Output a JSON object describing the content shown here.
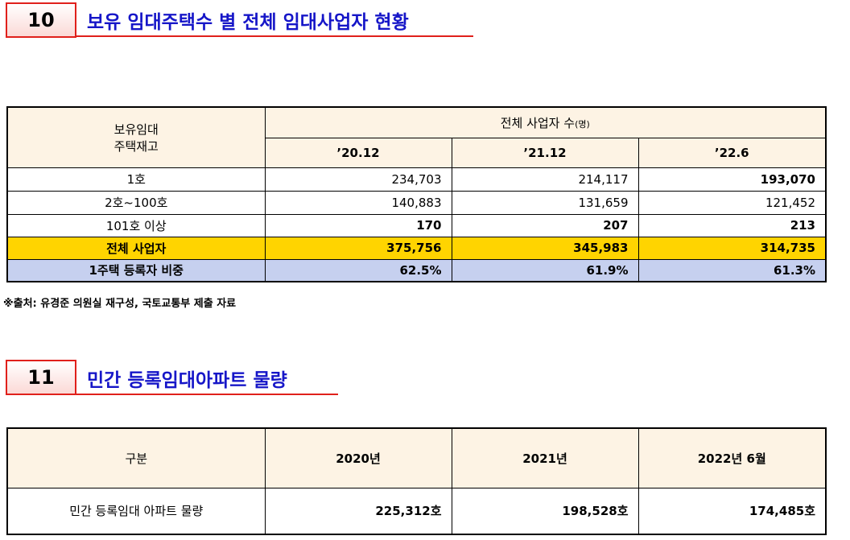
{
  "sections": [
    {
      "number": "10",
      "title": "보유 임대주택수 별 전체 임대사업자 현황",
      "table": {
        "corner": [
          "보유임대",
          "주택재고"
        ],
        "group_header": "전체 사업자 수",
        "group_unit": "(명)",
        "columns": [
          "’20.12",
          "’21.12",
          "’22.6"
        ],
        "rows": [
          [
            "1호",
            "234,703",
            "214,117",
            "193,070"
          ],
          [
            "2호~100호",
            "140,883",
            "131,659",
            "121,452"
          ],
          [
            "101호 이상",
            "170",
            "207",
            "213"
          ],
          [
            "전체 사업자",
            "375,756",
            "345,983",
            "314,735"
          ],
          [
            "1주택 등록자 비중",
            "62.5%",
            "61.9%",
            "61.3%"
          ]
        ]
      },
      "source": "※출처: 유경준 의원실 재구성, 국토교통부 제출 자료"
    },
    {
      "number": "11",
      "title": "민간 등록임대아파트 물량",
      "table": {
        "columns": [
          "구분",
          "2020년",
          "2021년",
          "2022년 6월"
        ],
        "rows": [
          [
            "민간 등록임대 아파트 물량",
            "225,312호",
            "198,528호",
            "174,485호"
          ]
        ]
      }
    }
  ]
}
